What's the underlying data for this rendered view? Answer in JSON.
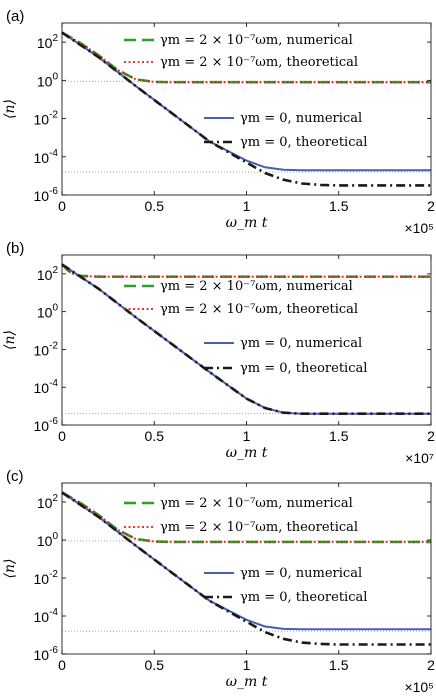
{
  "chart_data": [
    {
      "type": "line",
      "panel_label": "(a)",
      "x_multiplier": "×10⁵",
      "xlabel": "ω_m t",
      "ylabel": "⟨n⟩",
      "xlim": [
        0,
        2
      ],
      "ylim_log10": [
        -6,
        3
      ],
      "yscale": "log",
      "x_ticks": [
        "0",
        "0.5",
        "1",
        "1.5",
        "2"
      ],
      "y_ticks": [
        {
          "base": "10",
          "exp": "2"
        },
        {
          "base": "10",
          "exp": "0"
        },
        {
          "base": "10",
          "exp": "-2"
        },
        {
          "base": "10",
          "exp": "-4"
        },
        {
          "base": "10",
          "exp": "-6"
        }
      ],
      "reference_levels_log10": [
        -0.05,
        -4.8
      ],
      "series": [
        {
          "name": "γ_m = 2 × 10⁻⁷ω_m, numerical",
          "legend_text": "γm = 2 × 10⁻⁷ωm, numerical",
          "color": "#2ca02c",
          "style": "dashed",
          "x": [
            0,
            0.1,
            0.2,
            0.3,
            0.4,
            0.5,
            0.6,
            0.8,
            1.0,
            1.5,
            2.0
          ],
          "y_log10": [
            2.5,
            1.95,
            1.3,
            0.55,
            0.05,
            -0.08,
            -0.1,
            -0.1,
            -0.1,
            -0.1,
            -0.1
          ]
        },
        {
          "name": "γ_m = 2 × 10⁻⁷ω_m, theoretical",
          "legend_text": "γm = 2 × 10⁻⁷ωm, theoretical",
          "color": "#e02020",
          "style": "dotted",
          "x": [
            0,
            0.1,
            0.2,
            0.3,
            0.4,
            0.5,
            0.6,
            0.8,
            1.0,
            1.5,
            2.0
          ],
          "y_log10": [
            2.5,
            1.95,
            1.3,
            0.55,
            0.05,
            -0.08,
            -0.1,
            -0.1,
            -0.1,
            -0.1,
            -0.1
          ]
        },
        {
          "name": "γ_m = 0, numerical",
          "legend_text": "γm = 0, numerical",
          "color": "#4a5db5",
          "style": "solid",
          "x": [
            0,
            0.2,
            0.4,
            0.6,
            0.8,
            1.0,
            1.1,
            1.2,
            1.3,
            1.5,
            2.0
          ],
          "y_log10": [
            2.5,
            1.2,
            -0.3,
            -1.75,
            -3.2,
            -4.2,
            -4.55,
            -4.68,
            -4.7,
            -4.7,
            -4.7
          ]
        },
        {
          "name": "γ_m = 0, theoretical",
          "legend_text": "γm = 0, theoretical",
          "color": "#1a1a1a",
          "style": "dashdot",
          "x": [
            0,
            0.2,
            0.4,
            0.6,
            0.8,
            1.0,
            1.1,
            1.2,
            1.3,
            1.4,
            1.5,
            2.0
          ],
          "y_log10": [
            2.5,
            1.2,
            -0.3,
            -1.75,
            -3.2,
            -4.3,
            -4.85,
            -5.2,
            -5.4,
            -5.47,
            -5.5,
            -5.5
          ]
        }
      ]
    },
    {
      "type": "line",
      "panel_label": "(b)",
      "x_multiplier": "×10⁷",
      "xlabel": "ω_m t",
      "ylabel": "⟨n⟩",
      "xlim": [
        0,
        2
      ],
      "ylim_log10": [
        -6,
        3
      ],
      "yscale": "log",
      "x_ticks": [
        "0",
        "0.5",
        "1",
        "1.5",
        "2"
      ],
      "y_ticks": [
        {
          "base": "10",
          "exp": "2"
        },
        {
          "base": "10",
          "exp": "0"
        },
        {
          "base": "10",
          "exp": "-2"
        },
        {
          "base": "10",
          "exp": "-4"
        },
        {
          "base": "10",
          "exp": "-6"
        }
      ],
      "reference_levels_log10": [
        -5.4
      ],
      "series": [
        {
          "name": "γ_m = 2 × 10⁻⁷ω_m, numerical",
          "legend_text": "γm = 2 × 10⁻⁷ωm, numerical",
          "color": "#2ca02c",
          "style": "dashed",
          "x": [
            0,
            0.03,
            0.06,
            0.1,
            0.15,
            0.2,
            0.3,
            1.0,
            2.0
          ],
          "y_log10": [
            2.5,
            2.2,
            2.0,
            1.9,
            1.87,
            1.85,
            1.85,
            1.85,
            1.85
          ]
        },
        {
          "name": "γ_m = 2 × 10⁻⁷ω_m, theoretical",
          "legend_text": "γm = 2 × 10⁻⁷ωm, theoretical",
          "color": "#e02020",
          "style": "dotted",
          "x": [
            0,
            0.03,
            0.06,
            0.1,
            0.15,
            0.2,
            0.3,
            1.0,
            2.0
          ],
          "y_log10": [
            2.5,
            2.2,
            2.0,
            1.9,
            1.87,
            1.85,
            1.85,
            1.85,
            1.85
          ]
        },
        {
          "name": "γ_m = 0, numerical",
          "legend_text": "γm = 0, numerical",
          "color": "#4a5db5",
          "style": "solid",
          "x": [
            0,
            0.2,
            0.4,
            0.6,
            0.8,
            1.0,
            1.1,
            1.2,
            1.3,
            1.5,
            2.0
          ],
          "y_log10": [
            2.5,
            1.2,
            -0.3,
            -1.75,
            -3.2,
            -4.6,
            -5.1,
            -5.35,
            -5.4,
            -5.4,
            -5.4
          ]
        },
        {
          "name": "γ_m = 0, theoretical",
          "legend_text": "γm = 0, theoretical",
          "color": "#1a1a1a",
          "style": "dashdot",
          "x": [
            0,
            0.2,
            0.4,
            0.6,
            0.8,
            1.0,
            1.1,
            1.2,
            1.3,
            1.5,
            2.0
          ],
          "y_log10": [
            2.5,
            1.2,
            -0.3,
            -1.75,
            -3.2,
            -4.6,
            -5.1,
            -5.35,
            -5.4,
            -5.4,
            -5.4
          ]
        }
      ]
    },
    {
      "type": "line",
      "panel_label": "(c)",
      "x_multiplier": "×10⁵",
      "xlabel": "ω_m t",
      "ylabel": "⟨n⟩",
      "xlim": [
        0,
        2
      ],
      "ylim_log10": [
        -6,
        3
      ],
      "yscale": "log",
      "x_ticks": [
        "0",
        "0.5",
        "1",
        "1.5",
        "2"
      ],
      "y_ticks": [
        {
          "base": "10",
          "exp": "2"
        },
        {
          "base": "10",
          "exp": "0"
        },
        {
          "base": "10",
          "exp": "-2"
        },
        {
          "base": "10",
          "exp": "-4"
        },
        {
          "base": "10",
          "exp": "-6"
        }
      ],
      "reference_levels_log10": [
        -0.05,
        -4.8
      ],
      "series": [
        {
          "name": "γ_m = 2 × 10⁻⁷ω_m, numerical",
          "legend_text": "γm = 2 × 10⁻⁷ωm, numerical",
          "color": "#2ca02c",
          "style": "dashed",
          "x": [
            0,
            0.1,
            0.2,
            0.3,
            0.4,
            0.5,
            0.6,
            0.8,
            1.0,
            1.5,
            2.0
          ],
          "y_log10": [
            2.5,
            1.95,
            1.3,
            0.55,
            0.05,
            -0.08,
            -0.1,
            -0.1,
            -0.1,
            -0.1,
            -0.1
          ]
        },
        {
          "name": "γ_m = 2 × 10⁻⁷ω_m, theoretical",
          "legend_text": "γm = 2 × 10⁻⁷ωm, theoretical",
          "color": "#e02020",
          "style": "dotted",
          "x": [
            0,
            0.1,
            0.2,
            0.3,
            0.4,
            0.5,
            0.6,
            0.8,
            1.0,
            1.5,
            2.0
          ],
          "y_log10": [
            2.5,
            1.95,
            1.3,
            0.55,
            0.05,
            -0.08,
            -0.1,
            -0.1,
            -0.1,
            -0.1,
            -0.1
          ]
        },
        {
          "name": "γ_m = 0, numerical",
          "legend_text": "γm = 0, numerical",
          "color": "#4a5db5",
          "style": "solid",
          "x": [
            0,
            0.2,
            0.4,
            0.6,
            0.8,
            1.0,
            1.1,
            1.2,
            1.3,
            1.5,
            2.0
          ],
          "y_log10": [
            2.5,
            1.2,
            -0.3,
            -1.75,
            -3.2,
            -4.2,
            -4.55,
            -4.68,
            -4.7,
            -4.7,
            -4.7
          ]
        },
        {
          "name": "γ_m = 0, theoretical",
          "legend_text": "γm = 0, theoretical",
          "color": "#1a1a1a",
          "style": "dashdot",
          "x": [
            0,
            0.2,
            0.4,
            0.6,
            0.8,
            1.0,
            1.1,
            1.2,
            1.3,
            1.4,
            1.5,
            2.0
          ],
          "y_log10": [
            2.5,
            1.2,
            -0.3,
            -1.75,
            -3.2,
            -4.3,
            -4.85,
            -5.2,
            -5.4,
            -5.47,
            -5.5,
            -5.5
          ]
        }
      ]
    }
  ]
}
